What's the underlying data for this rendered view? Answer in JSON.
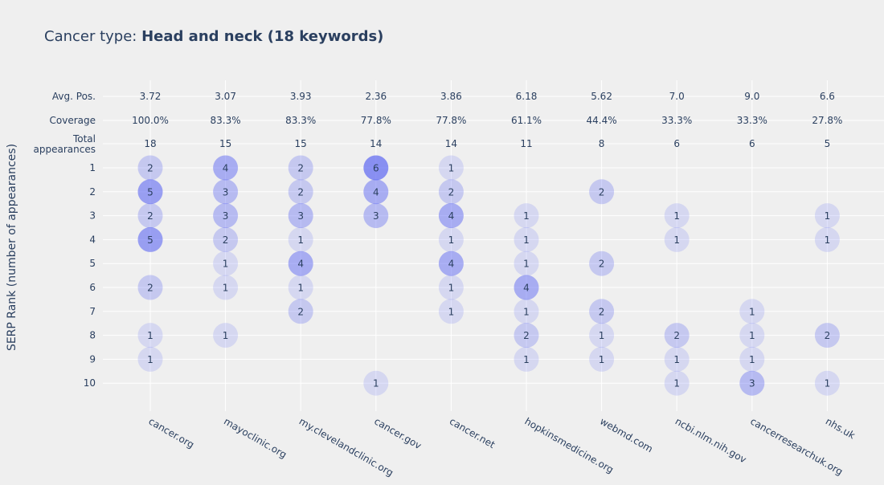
{
  "title_prefix": "Cancer type: ",
  "title_bold": "Head and neck (18 keywords)",
  "chart_data": {
    "type": "scatter",
    "title": "Cancer type: Head and neck (18 keywords)",
    "ylabel": "SERP Rank (number of appearances)",
    "xlabel": "",
    "categories": [
      "cancer.org",
      "mayoclinic.org",
      "my.clevelandclinic.org",
      "cancer.gov",
      "cancer.net",
      "hopkinsmedicine.org",
      "webmd.com",
      "ncbi.nlm.nih.gov",
      "cancerresearchuk.org",
      "nhs.uk"
    ],
    "summary_rows": [
      {
        "label": "Avg. Pos.",
        "values": [
          "3.72",
          "3.07",
          "3.93",
          "2.36",
          "3.86",
          "6.18",
          "5.62",
          "7.0",
          "9.0",
          "6.6"
        ]
      },
      {
        "label": "Coverage",
        "values": [
          "100.0%",
          "83.3%",
          "83.3%",
          "77.8%",
          "77.8%",
          "61.1%",
          "44.4%",
          "33.3%",
          "33.3%",
          "27.8%"
        ]
      },
      {
        "label": "Total appearances",
        "label_lines": [
          "Total",
          "appearances"
        ],
        "values": [
          "18",
          "15",
          "15",
          "14",
          "14",
          "11",
          "8",
          "6",
          "6",
          "5"
        ]
      }
    ],
    "ranks": [
      "1",
      "2",
      "3",
      "4",
      "5",
      "6",
      "7",
      "8",
      "9",
      "10"
    ],
    "points": [
      {
        "domain": "cancer.org",
        "rank": 1,
        "count": 2
      },
      {
        "domain": "cancer.org",
        "rank": 2,
        "count": 5
      },
      {
        "domain": "cancer.org",
        "rank": 3,
        "count": 2
      },
      {
        "domain": "cancer.org",
        "rank": 4,
        "count": 5
      },
      {
        "domain": "cancer.org",
        "rank": 6,
        "count": 2
      },
      {
        "domain": "cancer.org",
        "rank": 8,
        "count": 1
      },
      {
        "domain": "cancer.org",
        "rank": 9,
        "count": 1
      },
      {
        "domain": "mayoclinic.org",
        "rank": 1,
        "count": 4
      },
      {
        "domain": "mayoclinic.org",
        "rank": 2,
        "count": 3
      },
      {
        "domain": "mayoclinic.org",
        "rank": 3,
        "count": 3
      },
      {
        "domain": "mayoclinic.org",
        "rank": 4,
        "count": 2
      },
      {
        "domain": "mayoclinic.org",
        "rank": 5,
        "count": 1
      },
      {
        "domain": "mayoclinic.org",
        "rank": 6,
        "count": 1
      },
      {
        "domain": "mayoclinic.org",
        "rank": 8,
        "count": 1
      },
      {
        "domain": "my.clevelandclinic.org",
        "rank": 1,
        "count": 2
      },
      {
        "domain": "my.clevelandclinic.org",
        "rank": 2,
        "count": 2
      },
      {
        "domain": "my.clevelandclinic.org",
        "rank": 3,
        "count": 3
      },
      {
        "domain": "my.clevelandclinic.org",
        "rank": 4,
        "count": 1
      },
      {
        "domain": "my.clevelandclinic.org",
        "rank": 5,
        "count": 4
      },
      {
        "domain": "my.clevelandclinic.org",
        "rank": 6,
        "count": 1
      },
      {
        "domain": "my.clevelandclinic.org",
        "rank": 7,
        "count": 2
      },
      {
        "domain": "cancer.gov",
        "rank": 1,
        "count": 6
      },
      {
        "domain": "cancer.gov",
        "rank": 2,
        "count": 4
      },
      {
        "domain": "cancer.gov",
        "rank": 3,
        "count": 3
      },
      {
        "domain": "cancer.gov",
        "rank": 10,
        "count": 1
      },
      {
        "domain": "cancer.net",
        "rank": 1,
        "count": 1
      },
      {
        "domain": "cancer.net",
        "rank": 2,
        "count": 2
      },
      {
        "domain": "cancer.net",
        "rank": 3,
        "count": 4
      },
      {
        "domain": "cancer.net",
        "rank": 4,
        "count": 1
      },
      {
        "domain": "cancer.net",
        "rank": 5,
        "count": 4
      },
      {
        "domain": "cancer.net",
        "rank": 6,
        "count": 1
      },
      {
        "domain": "cancer.net",
        "rank": 7,
        "count": 1
      },
      {
        "domain": "hopkinsmedicine.org",
        "rank": 3,
        "count": 1
      },
      {
        "domain": "hopkinsmedicine.org",
        "rank": 4,
        "count": 1
      },
      {
        "domain": "hopkinsmedicine.org",
        "rank": 5,
        "count": 1
      },
      {
        "domain": "hopkinsmedicine.org",
        "rank": 6,
        "count": 4
      },
      {
        "domain": "hopkinsmedicine.org",
        "rank": 7,
        "count": 1
      },
      {
        "domain": "hopkinsmedicine.org",
        "rank": 8,
        "count": 2
      },
      {
        "domain": "hopkinsmedicine.org",
        "rank": 9,
        "count": 1
      },
      {
        "domain": "webmd.com",
        "rank": 2,
        "count": 2
      },
      {
        "domain": "webmd.com",
        "rank": 5,
        "count": 2
      },
      {
        "domain": "webmd.com",
        "rank": 7,
        "count": 2
      },
      {
        "domain": "webmd.com",
        "rank": 8,
        "count": 1
      },
      {
        "domain": "webmd.com",
        "rank": 9,
        "count": 1
      },
      {
        "domain": "ncbi.nlm.nih.gov",
        "rank": 3,
        "count": 1
      },
      {
        "domain": "ncbi.nlm.nih.gov",
        "rank": 4,
        "count": 1
      },
      {
        "domain": "ncbi.nlm.nih.gov",
        "rank": 8,
        "count": 2
      },
      {
        "domain": "ncbi.nlm.nih.gov",
        "rank": 9,
        "count": 1
      },
      {
        "domain": "ncbi.nlm.nih.gov",
        "rank": 10,
        "count": 1
      },
      {
        "domain": "cancerresearchuk.org",
        "rank": 7,
        "count": 1
      },
      {
        "domain": "cancerresearchuk.org",
        "rank": 8,
        "count": 1
      },
      {
        "domain": "cancerresearchuk.org",
        "rank": 9,
        "count": 1
      },
      {
        "domain": "cancerresearchuk.org",
        "rank": 10,
        "count": 3
      },
      {
        "domain": "nhs.uk",
        "rank": 3,
        "count": 1
      },
      {
        "domain": "nhs.uk",
        "rank": 4,
        "count": 1
      },
      {
        "domain": "nhs.uk",
        "rank": 8,
        "count": 2
      },
      {
        "domain": "nhs.uk",
        "rank": 10,
        "count": 1
      }
    ],
    "grid": true,
    "colors": {
      "background": "#efefef",
      "gridline": "#ffffff",
      "marker": "#5c67f2",
      "text": "#2a3f5f"
    }
  }
}
